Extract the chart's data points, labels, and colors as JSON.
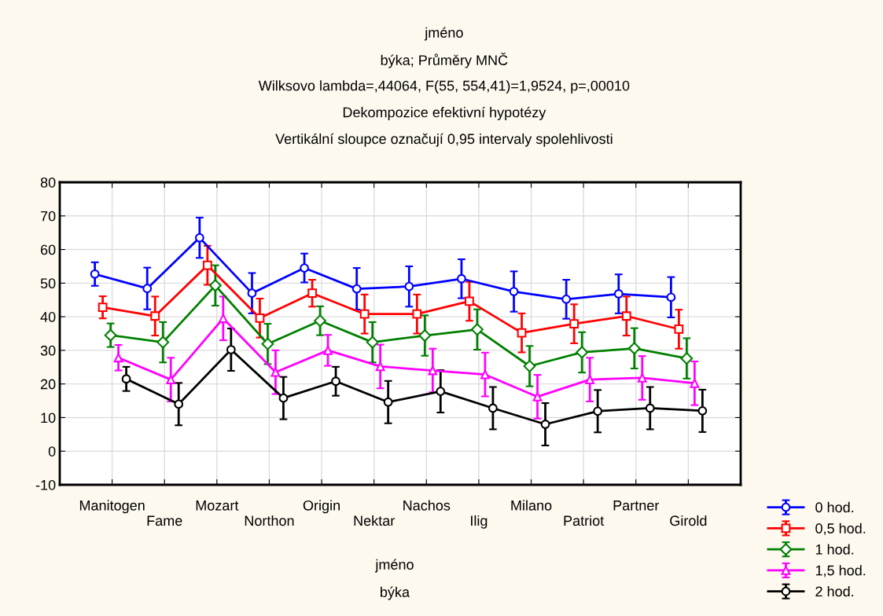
{
  "chart_data": {
    "type": "line",
    "title": "jméno\nbýka; Průměry MNČ",
    "subtitle": "Wilksovo lambda=,44064, F(55, 554,41)=1,9524, p=,00010\nDekompozice efektivní hypotézy\nVertikální sloupce označují 0,95 intervaly spolehlivosti",
    "xlabel": "jméno\nbýka",
    "categories": [
      "Manitogen",
      "Fame",
      "Mozart",
      "Northon",
      "Origin",
      "Nektar",
      "Nachos",
      "Ilig",
      "Milano",
      "Patriot",
      "Partner",
      "Girold"
    ],
    "series": [
      {
        "name": "0 hod.",
        "color": "#0000ff",
        "marker": "circle",
        "values": [
          52.7,
          48.4,
          63.5,
          47,
          54.5,
          48.3,
          49,
          51.3,
          47.5,
          45.2,
          46.8,
          45.8
        ],
        "errors": [
          3.5,
          6.2,
          6,
          6,
          4.3,
          6.2,
          6,
          5.8,
          6,
          5.8,
          5.8,
          6
        ]
      },
      {
        "name": "0,5 hod.",
        "color": "#ff0000",
        "marker": "square",
        "values": [
          42.8,
          40.2,
          55.3,
          39.6,
          47,
          40.8,
          40.8,
          44.6,
          35.2,
          37.9,
          40.2,
          36.3
        ],
        "errors": [
          3.3,
          5.8,
          5.8,
          5.8,
          4,
          5.8,
          5.8,
          5.8,
          5.8,
          5.8,
          5.8,
          5.8
        ]
      },
      {
        "name": "1 hod.",
        "color": "#008000",
        "marker": "diamond",
        "values": [
          34.5,
          32.4,
          49.3,
          31.9,
          38.8,
          32.4,
          34.4,
          36.2,
          25.3,
          29.4,
          30.6,
          27.6
        ],
        "errors": [
          3.5,
          6,
          6,
          6,
          4.3,
          6,
          6,
          6,
          6,
          6,
          6,
          6
        ]
      },
      {
        "name": "1,5 hod.",
        "color": "#ff00ff",
        "marker": "triangle",
        "values": [
          27.8,
          21.3,
          39.5,
          23.5,
          30,
          25.2,
          24,
          22.8,
          16.2,
          21.3,
          21.8,
          20.2
        ],
        "errors": [
          3.8,
          6.5,
          6.5,
          6.5,
          4.6,
          6.5,
          6.5,
          6.5,
          6.5,
          6.5,
          6.5,
          6.5
        ]
      },
      {
        "name": "2 hod.",
        "color": "#000000",
        "marker": "circle",
        "values": [
          21.5,
          14,
          30.2,
          15.8,
          20.8,
          14.6,
          17.8,
          12.8,
          8,
          11.9,
          12.8,
          12
        ],
        "errors": [
          3.6,
          6.3,
          6.3,
          6.3,
          4.3,
          6.3,
          6.3,
          6.3,
          6.3,
          6.3,
          6.3,
          6.3
        ]
      }
    ],
    "ylim": [
      -10,
      80
    ],
    "yticks": [
      -10,
      0,
      10,
      20,
      30,
      40,
      50,
      60,
      70,
      80
    ],
    "grid": true,
    "legend": "bottom right"
  }
}
